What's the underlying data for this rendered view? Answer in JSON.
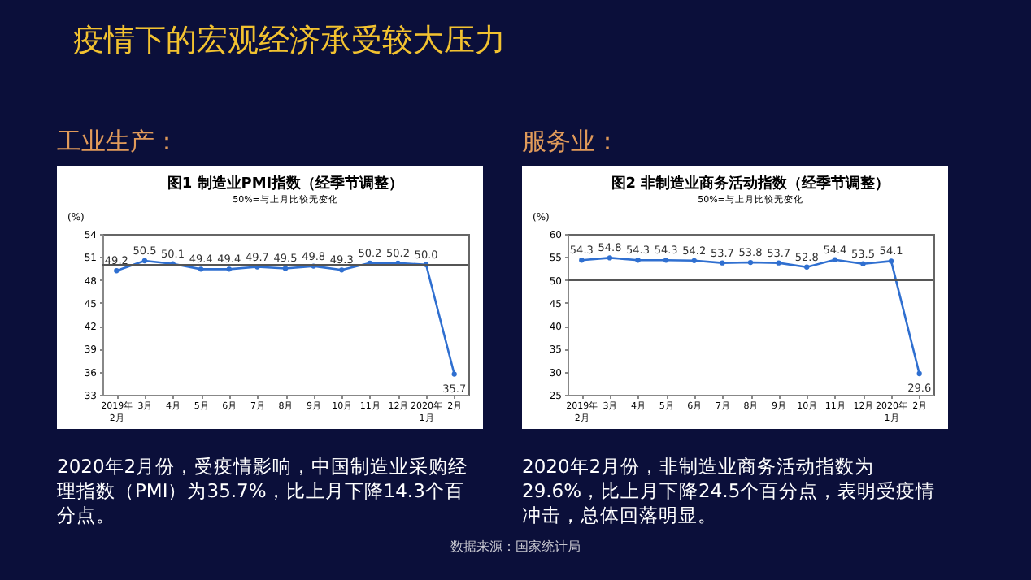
{
  "chart_data": [
    {
      "type": "other",
      "title": "疫情下的宏观经济承受较大压力",
      "annotations": [
        "数据来源：国家统计局"
      ]
    },
    {
      "type": "line",
      "title": "图1 制造业PMI指数（经季节调整）",
      "subtitle": "50%=与上月比较无变化",
      "ylabel": "(%)",
      "annotations": [
        "工业生产：",
        "2020年2月份，受疫情影响，中国制造业采购经理指数（PMI）为35.7%，比上月下降14.3个百分点。"
      ],
      "categories": [
        "2019年\n2月",
        "3月",
        "4月",
        "5月",
        "6月",
        "7月",
        "8月",
        "9月",
        "10月",
        "11月",
        "12月",
        "2020年\n1月",
        "2月"
      ],
      "series": [
        {
          "color": "#2f6fd0",
          "values": [
            49.2,
            50.5,
            50.1,
            49.4,
            49.4,
            49.7,
            49.5,
            49.8,
            49.3,
            50.2,
            50.2,
            50.0,
            35.7
          ],
          "value_labels": [
            "49.2",
            "50.5",
            "50.1",
            "49.4",
            "49.4",
            "49.7",
            "49.5",
            "49.8",
            "49.3",
            "50.2",
            "50.2",
            "50.0",
            "35.7"
          ]
        }
      ],
      "ylim": [
        33,
        54
      ],
      "yticks": [
        33,
        36,
        39,
        42,
        45,
        48,
        51,
        54
      ],
      "grid": false,
      "marker": "circle",
      "ref_lines": [
        {
          "axis": "y",
          "value": 50,
          "color": "#555555"
        }
      ]
    },
    {
      "type": "line",
      "title": "图2 非制造业商务活动指数（经季节调整）",
      "subtitle": "50%=与上月比较无变化",
      "ylabel": "(%)",
      "annotations": [
        "服务业：",
        "2020年2月份，非制造业商务活动指数为29.6%，比上月下降24.5个百分点，表明受疫情冲击，总体回落明显。"
      ],
      "categories": [
        "2019年\n2月",
        "3月",
        "4月",
        "5月",
        "6月",
        "7月",
        "8月",
        "9月",
        "10月",
        "11月",
        "12月",
        "2020年\n1月",
        "2月"
      ],
      "series": [
        {
          "color": "#2f6fd0",
          "values": [
            54.3,
            54.8,
            54.3,
            54.3,
            54.2,
            53.7,
            53.8,
            53.7,
            52.8,
            54.4,
            53.5,
            54.1,
            29.6
          ],
          "value_labels": [
            "54.3",
            "54.8",
            "54.3",
            "54.3",
            "54.2",
            "53.7",
            "53.8",
            "53.7",
            "52.8",
            "54.4",
            "53.5",
            "54.1",
            "29.6"
          ]
        }
      ],
      "ylim": [
        25,
        60
      ],
      "yticks": [
        25,
        30,
        35,
        40,
        45,
        50,
        55,
        60
      ],
      "grid": false,
      "marker": "circle",
      "ref_lines": [
        {
          "axis": "y",
          "value": 50,
          "color": "#555555"
        }
      ]
    }
  ]
}
